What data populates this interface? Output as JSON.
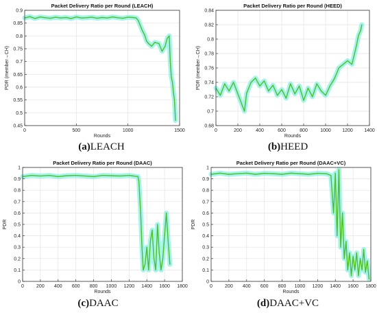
{
  "chart_data": [
    {
      "type": "line",
      "title": "Packet Delivery Ratio per Round (LEACH)",
      "xlabel": "Rounds",
      "ylabel": "PDR (member→CH)",
      "xlim": [
        0,
        1500
      ],
      "ylim": [
        0.45,
        0.9
      ],
      "xticks": [
        0,
        500,
        1000,
        1500
      ],
      "yticks": [
        0.45,
        0.5,
        0.55,
        0.6,
        0.65,
        0.7,
        0.75,
        0.8,
        0.85,
        0.9
      ],
      "ytick_labels": [
        "0.45",
        "0.5",
        "0.55",
        "0.6",
        "0.65",
        "0.7",
        "0.75",
        "0.8",
        "0.85",
        "0.9"
      ],
      "xtick_labels": [
        "0",
        "500",
        "1000",
        "1500"
      ],
      "grid": true,
      "band_color": "#86f0e8",
      "line_color": "#4fc01c",
      "series": [
        {
          "x": [
            0,
            50,
            100,
            150,
            200,
            250,
            300,
            350,
            400,
            450,
            500,
            550,
            600,
            650,
            700,
            750,
            800,
            850,
            900,
            950,
            1000,
            1050,
            1080,
            1100,
            1120,
            1140,
            1160,
            1180,
            1200,
            1230,
            1260,
            1300,
            1330,
            1360,
            1380,
            1400,
            1410,
            1420,
            1430,
            1440,
            1450,
            1460
          ],
          "y": [
            0.87,
            0.875,
            0.868,
            0.874,
            0.871,
            0.869,
            0.873,
            0.87,
            0.872,
            0.868,
            0.874,
            0.87,
            0.871,
            0.873,
            0.869,
            0.872,
            0.87,
            0.874,
            0.871,
            0.869,
            0.873,
            0.872,
            0.87,
            0.86,
            0.84,
            0.82,
            0.805,
            0.78,
            0.77,
            0.76,
            0.775,
            0.77,
            0.74,
            0.76,
            0.79,
            0.8,
            0.7,
            0.64,
            0.62,
            0.58,
            0.55,
            0.47
          ]
        }
      ]
    },
    {
      "type": "line",
      "title": "Packet Delivery Ratio per Round (HEED)",
      "xlabel": "Rounds",
      "ylabel": "PDR (member→CH)",
      "xlim": [
        0,
        1400
      ],
      "ylim": [
        0.68,
        0.84
      ],
      "xticks": [
        0,
        200,
        400,
        600,
        800,
        1000,
        1200,
        1400
      ],
      "yticks": [
        0.68,
        0.7,
        0.72,
        0.74,
        0.76,
        0.78,
        0.8,
        0.82,
        0.84
      ],
      "ytick_labels": [
        "0.68",
        "0.7",
        "0.72",
        "0.74",
        "0.76",
        "0.78",
        "0.8",
        "0.82",
        "0.84"
      ],
      "xtick_labels": [
        "0",
        "200",
        "400",
        "600",
        "800",
        "1000",
        "1200",
        "1400"
      ],
      "grid": true,
      "band_color": "#86f0e8",
      "line_color": "#4fc01c",
      "series": [
        {
          "x": [
            0,
            40,
            80,
            120,
            160,
            200,
            240,
            260,
            280,
            320,
            360,
            400,
            440,
            480,
            520,
            560,
            600,
            640,
            680,
            720,
            760,
            800,
            840,
            880,
            920,
            960,
            1000,
            1040,
            1080,
            1100,
            1120,
            1160,
            1200,
            1240,
            1280,
            1300,
            1320,
            1330
          ],
          "y": [
            0.732,
            0.722,
            0.738,
            0.728,
            0.74,
            0.724,
            0.708,
            0.7,
            0.725,
            0.74,
            0.746,
            0.735,
            0.742,
            0.728,
            0.736,
            0.722,
            0.73,
            0.718,
            0.738,
            0.724,
            0.735,
            0.715,
            0.732,
            0.72,
            0.738,
            0.728,
            0.722,
            0.735,
            0.745,
            0.752,
            0.76,
            0.765,
            0.77,
            0.765,
            0.79,
            0.805,
            0.812,
            0.82
          ]
        }
      ]
    },
    {
      "type": "line",
      "title": "Packet Delivery Ratio per Round (DAAC)",
      "xlabel": "Rounds",
      "ylabel": "PDR",
      "xlim": [
        0,
        1800
      ],
      "ylim": [
        0,
        1
      ],
      "xticks": [
        0,
        200,
        400,
        600,
        800,
        1000,
        1200,
        1400,
        1600,
        1800
      ],
      "yticks": [
        0,
        0.1,
        0.2,
        0.3,
        0.4,
        0.5,
        0.6,
        0.7,
        0.8,
        0.9,
        1
      ],
      "ytick_labels": [
        "0",
        "0.1",
        "0.2",
        "0.3",
        "0.4",
        "0.5",
        "0.6",
        "0.7",
        "0.8",
        "0.9",
        "1"
      ],
      "xtick_labels": [
        "0",
        "200",
        "400",
        "600",
        "800",
        "1000",
        "1200",
        "1400",
        "1600",
        "1800"
      ],
      "grid": true,
      "band_color": "#86f0e8",
      "line_color": "#4fc01c",
      "series": [
        {
          "x": [
            0,
            100,
            200,
            300,
            400,
            500,
            600,
            700,
            800,
            900,
            1000,
            1100,
            1200,
            1300,
            1310,
            1330,
            1345,
            1360,
            1380,
            1400,
            1420,
            1440,
            1460,
            1480,
            1500,
            1520,
            1540,
            1560,
            1580,
            1600,
            1620,
            1640,
            1660
          ],
          "y": [
            0.92,
            0.93,
            0.925,
            0.93,
            0.92,
            0.928,
            0.93,
            0.925,
            0.92,
            0.93,
            0.928,
            0.925,
            0.93,
            0.92,
            0.88,
            0.6,
            0.3,
            0.1,
            0.15,
            0.3,
            0.1,
            0.35,
            0.45,
            0.2,
            0.1,
            0.5,
            0.25,
            0.1,
            0.2,
            0.4,
            0.6,
            0.35,
            0.15
          ]
        }
      ]
    },
    {
      "type": "line",
      "title": "Packet Delivery Ratio per Round (DAAC+VC)",
      "xlabel": "Rounds",
      "ylabel": "PDR",
      "xlim": [
        0,
        1800
      ],
      "ylim": [
        0,
        1
      ],
      "xticks": [
        0,
        200,
        400,
        600,
        800,
        1000,
        1200,
        1400,
        1600,
        1800
      ],
      "yticks": [
        0,
        0.1,
        0.2,
        0.3,
        0.4,
        0.5,
        0.6,
        0.7,
        0.8,
        0.9,
        1
      ],
      "ytick_labels": [
        "0",
        "0.1",
        "0.2",
        "0.3",
        "0.4",
        "0.5",
        "0.6",
        "0.7",
        "0.8",
        "0.9",
        "1"
      ],
      "xtick_labels": [
        "0",
        "200",
        "400",
        "600",
        "800",
        "1000",
        "1200",
        "1400",
        "1600",
        "1800"
      ],
      "grid": true,
      "band_color": "#86f0e8",
      "line_color": "#4fc01c",
      "series": [
        {
          "x": [
            0,
            100,
            200,
            300,
            400,
            500,
            600,
            700,
            800,
            900,
            1000,
            1100,
            1200,
            1300,
            1350,
            1380,
            1400,
            1420,
            1440,
            1460,
            1480,
            1500,
            1520,
            1540,
            1560,
            1580,
            1600,
            1620,
            1640,
            1660,
            1680,
            1700,
            1720,
            1740,
            1760,
            1780
          ],
          "y": [
            0.94,
            0.95,
            0.94,
            0.945,
            0.95,
            0.94,
            0.948,
            0.945,
            0.94,
            0.95,
            0.945,
            0.94,
            0.948,
            0.945,
            0.93,
            0.6,
            0.95,
            0.4,
            0.98,
            0.3,
            0.6,
            0.2,
            0.35,
            0.1,
            0.25,
            0.05,
            0.22,
            0.1,
            0.25,
            0.05,
            0.2,
            0.1,
            0.28,
            0.08,
            0.18,
            0.02
          ]
        }
      ]
    }
  ],
  "captions": [
    {
      "tag": "(a)",
      "name": "LEACH"
    },
    {
      "tag": "(b)",
      "name": "HEED"
    },
    {
      "tag": "(c)",
      "name": "DAAC"
    },
    {
      "tag": "(d)",
      "name": "DAAC+VC"
    }
  ]
}
